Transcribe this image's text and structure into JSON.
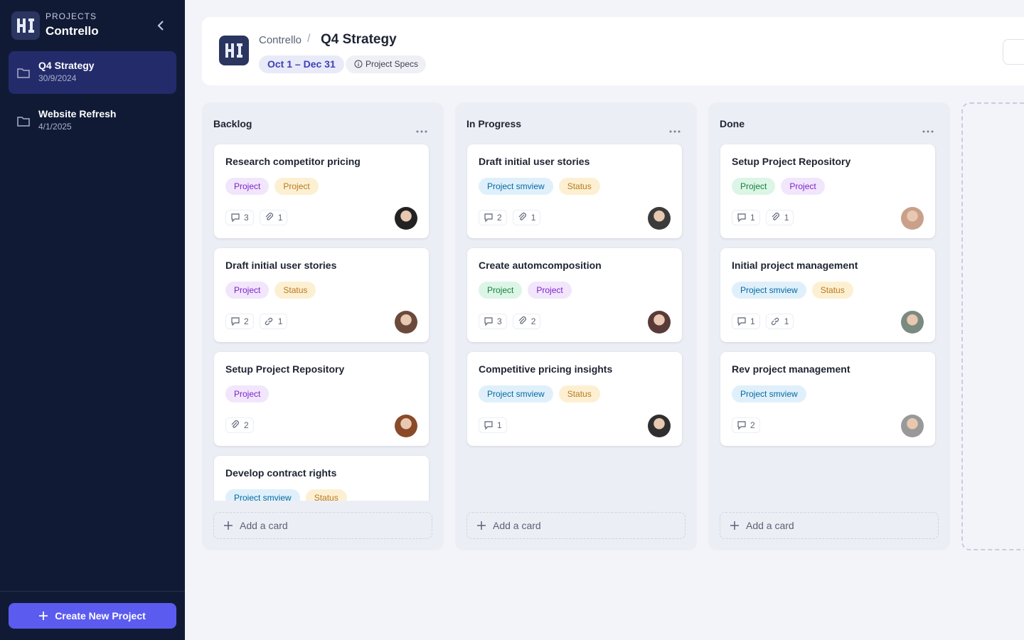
{
  "sidebar": {
    "label": "PROJECTS",
    "name": "Contrello",
    "projects": [
      {
        "name": "Q4 Strategy",
        "date": "30/9/2024"
      },
      {
        "name": "Website Refresh",
        "date": "4/1/2025"
      }
    ],
    "create": "Create New Project"
  },
  "header": {
    "breadcrumb": "Contrello",
    "title": "Q4 Strategy",
    "dates": "Oct 1 – Dec 31",
    "specs": "Project Specs"
  },
  "columns": [
    {
      "title": "Backlog",
      "add": "Add a card",
      "cards": [
        {
          "title": "Research competitor pricing",
          "tags": [
            {
              "text": "Project",
              "color": "purple"
            },
            {
              "text": "Project",
              "color": "orange"
            }
          ],
          "meta": [
            {
              "icon": "comment",
              "count": 3
            },
            {
              "icon": "attach",
              "count": 1
            }
          ]
        },
        {
          "title": "Draft initial user stories",
          "tags": [
            {
              "text": "Project",
              "color": "purple"
            },
            {
              "text": "Status",
              "color": "orange"
            }
          ],
          "meta": [
            {
              "icon": "comment",
              "count": 2
            },
            {
              "icon": "link",
              "count": 1
            }
          ]
        },
        {
          "title": "Setup Project Repository",
          "tags": [
            {
              "text": "Project",
              "color": "purple"
            }
          ],
          "meta": [
            {
              "icon": "attach",
              "count": 2
            }
          ]
        },
        {
          "title": "Develop contract rights",
          "tags": [
            {
              "text": "Project smview",
              "color": "blue"
            },
            {
              "text": "Status",
              "color": "orange"
            }
          ],
          "meta": []
        }
      ]
    },
    {
      "title": "In Progress",
      "add": "Add a card",
      "cards": [
        {
          "title": "Draft initial user stories",
          "tags": [
            {
              "text": "Project smview",
              "color": "blue"
            },
            {
              "text": "Status",
              "color": "orange"
            }
          ],
          "meta": [
            {
              "icon": "comment",
              "count": 2
            },
            {
              "icon": "attach",
              "count": 1
            }
          ]
        },
        {
          "title": "Create automcomposition",
          "tags": [
            {
              "text": "Project",
              "color": "green"
            },
            {
              "text": "Project",
              "color": "purple"
            }
          ],
          "meta": [
            {
              "icon": "comment",
              "count": 3
            },
            {
              "icon": "attach",
              "count": 2
            }
          ]
        },
        {
          "title": "Competitive pricing insights",
          "tags": [
            {
              "text": "Project smview",
              "color": "blue"
            },
            {
              "text": "Status",
              "color": "orange"
            }
          ],
          "meta": [
            {
              "icon": "comment",
              "count": 1
            }
          ]
        }
      ]
    },
    {
      "title": "Done",
      "add": "Add a card",
      "cards": [
        {
          "title": "Setup Project Repository",
          "tags": [
            {
              "text": "Project",
              "color": "green"
            },
            {
              "text": "Project",
              "color": "purple"
            }
          ],
          "meta": [
            {
              "icon": "comment",
              "count": 1
            },
            {
              "icon": "attach",
              "count": 1
            }
          ]
        },
        {
          "title": "Initial project management",
          "tags": [
            {
              "text": "Project smview",
              "color": "blue"
            },
            {
              "text": "Status",
              "color": "orange"
            }
          ],
          "meta": [
            {
              "icon": "comment",
              "count": 1
            },
            {
              "icon": "link",
              "count": 1
            }
          ]
        },
        {
          "title": "Rev project management",
          "tags": [
            {
              "text": "Project smview",
              "color": "blue"
            }
          ],
          "meta": [
            {
              "icon": "comment",
              "count": 2
            }
          ]
        }
      ]
    }
  ]
}
